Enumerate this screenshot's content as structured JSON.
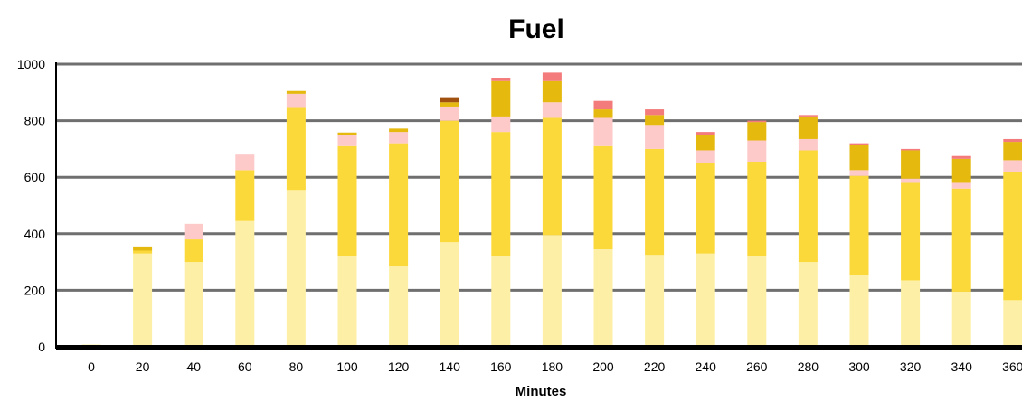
{
  "chart_data": {
    "type": "bar",
    "stacked": true,
    "title": "Fuel",
    "xlabel": "Minutes",
    "ylabel": "",
    "ylim": [
      0,
      1000
    ],
    "yticks": [
      0,
      200,
      400,
      600,
      800,
      1000
    ],
    "grid": true,
    "categories": [
      "0",
      "20",
      "40",
      "60",
      "80",
      "100",
      "120",
      "140",
      "160",
      "180",
      "200",
      "220",
      "240",
      "260",
      "280",
      "300",
      "320",
      "340",
      "360"
    ],
    "series": [
      {
        "color": "#fdf0a6",
        "values": [
          8,
          330,
          300,
          445,
          555,
          320,
          285,
          370,
          320,
          395,
          345,
          325,
          330,
          320,
          300,
          255,
          235,
          195,
          165
        ]
      },
      {
        "color": "#fcd93a",
        "values": [
          0,
          10,
          80,
          180,
          290,
          390,
          435,
          430,
          440,
          415,
          365,
          375,
          320,
          335,
          395,
          350,
          345,
          365,
          455
        ]
      },
      {
        "color": "#fdc9c9",
        "values": [
          0,
          0,
          55,
          55,
          50,
          40,
          40,
          50,
          55,
          55,
          100,
          85,
          45,
          75,
          40,
          20,
          15,
          20,
          40
        ]
      },
      {
        "color": "#e5b90e",
        "values": [
          0,
          15,
          0,
          0,
          10,
          8,
          12,
          15,
          125,
          75,
          30,
          35,
          55,
          65,
          80,
          90,
          100,
          85,
          65
        ]
      },
      {
        "color": "#f47b7b",
        "values": [
          0,
          0,
          0,
          0,
          0,
          0,
          0,
          0,
          12,
          30,
          30,
          20,
          10,
          5,
          5,
          5,
          5,
          10,
          10
        ]
      },
      {
        "color": "#a0500f",
        "values": [
          0,
          0,
          0,
          0,
          0,
          0,
          0,
          18,
          0,
          0,
          0,
          0,
          0,
          0,
          0,
          0,
          0,
          0,
          0
        ]
      }
    ]
  }
}
